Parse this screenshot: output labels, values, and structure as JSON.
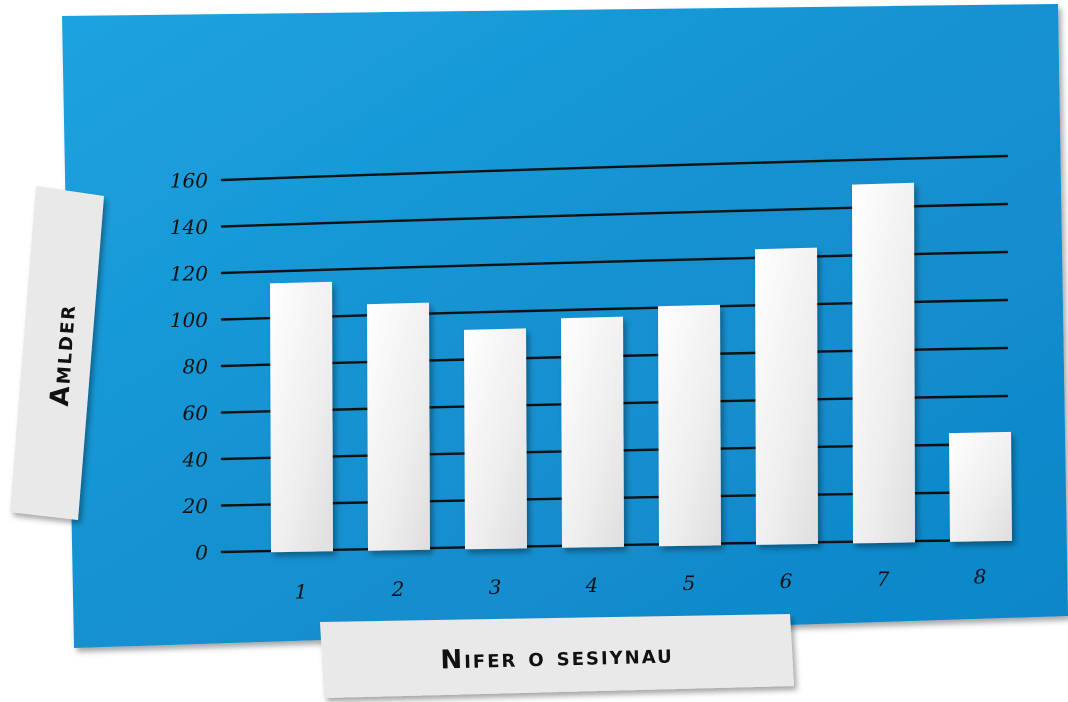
{
  "chart_data": {
    "type": "bar",
    "title": "",
    "xlabel": "Nifer o sesiynau",
    "ylabel": "Amlder",
    "categories": [
      "1",
      "2",
      "3",
      "4",
      "5",
      "6",
      "7",
      "8"
    ],
    "values": [
      115,
      105,
      93,
      97,
      101,
      124,
      150,
      45
    ],
    "yticks": [
      0,
      20,
      40,
      60,
      80,
      100,
      120,
      140,
      160
    ],
    "ylim": [
      0,
      160
    ],
    "grid": true,
    "legend": "none"
  },
  "colors": {
    "board": "#1597d6",
    "board_dark": "#0f7fbf",
    "bar": "#f2f2f2",
    "gridline": "#111111",
    "label_card": "#e9e9e9",
    "ink": "#111111"
  }
}
